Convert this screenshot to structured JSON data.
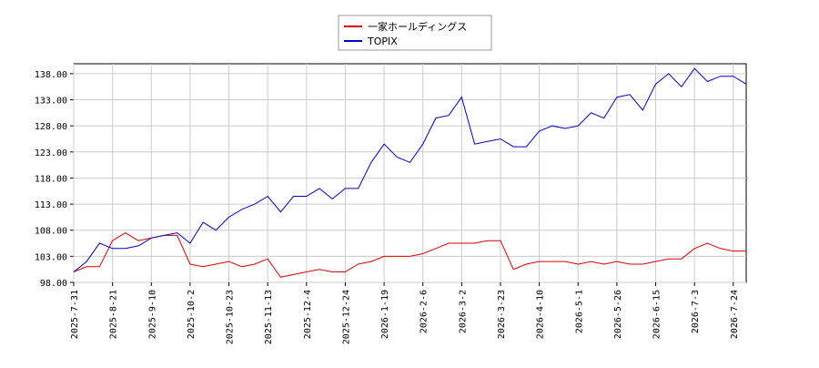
{
  "chart_data": {
    "type": "line",
    "x": [
      "2025-7-31",
      "2025-8-6",
      "2025-8-14",
      "2025-8-21",
      "2025-8-27",
      "2025-9-3",
      "2025-9-10",
      "2025-9-18",
      "2025-9-25",
      "2025-10-2",
      "2025-10-9",
      "2025-10-16",
      "2025-10-23",
      "2025-10-30",
      "2025-11-6",
      "2025-11-13",
      "2025-11-20",
      "2025-11-27",
      "2025-12-4",
      "2025-12-10",
      "2025-12-17",
      "2025-12-24",
      "2026-1-6",
      "2026-1-13",
      "2026-1-19",
      "2026-1-26",
      "2026-1-30",
      "2026-2-6",
      "2026-2-13",
      "2026-2-20",
      "2026-3-2",
      "2026-3-9",
      "2026-3-16",
      "2026-3-23",
      "2026-3-30",
      "2026-4-3",
      "2026-4-10",
      "2026-4-17",
      "2026-4-24",
      "2026-5-1",
      "2026-5-13",
      "2026-5-19",
      "2026-5-26",
      "2026-6-1",
      "2026-6-8",
      "2026-6-15",
      "2026-6-21",
      "2026-6-27",
      "2026-7-3",
      "2026-7-10",
      "2026-7-17",
      "2026-7-24",
      "2026-7-31"
    ],
    "series": [
      {
        "name": "一家ホールディングス",
        "color": "#dd0000",
        "values": [
          100,
          101,
          101,
          106,
          107.5,
          106,
          106.5,
          107,
          107,
          101.5,
          101,
          101.5,
          102,
          101,
          101.5,
          102.5,
          99,
          99.5,
          100,
          100.5,
          100,
          100,
          101.5,
          102,
          103,
          103,
          103,
          103.5,
          104.5,
          105.5,
          105.5,
          105.5,
          106,
          106,
          100.5,
          101.5,
          102,
          102,
          102,
          101.5,
          102,
          101.5,
          102,
          101.5,
          101.5,
          102,
          102.5,
          102.5,
          104.5,
          105.5,
          104.5,
          104,
          104
        ]
      },
      {
        "name": "TOPIX",
        "color": "#0000cc",
        "values": [
          100,
          102,
          105.5,
          104.5,
          104.5,
          105,
          106.5,
          107,
          107.5,
          105.5,
          109.5,
          108,
          110.5,
          112,
          113,
          114.5,
          111.5,
          114.5,
          114.5,
          116,
          114,
          116,
          116,
          121,
          124.5,
          122,
          121,
          124.5,
          129.5,
          130,
          133.5,
          124.5,
          125,
          125.5,
          124,
          124,
          127,
          128,
          127.5,
          128,
          130.5,
          129.5,
          133.5,
          134,
          131,
          136,
          138,
          135.5,
          139,
          136.5,
          137.5,
          137.5,
          136
        ]
      }
    ],
    "xticks": [
      "2025-7-31",
      "2025-8-21",
      "2025-9-10",
      "2025-10-2",
      "2025-10-23",
      "2025-11-13",
      "2025-12-4",
      "2025-12-24",
      "2026-1-19",
      "2026-2-6",
      "2026-3-2",
      "2026-3-23",
      "2026-4-10",
      "2026-5-1",
      "2026-5-26",
      "2026-6-15",
      "2026-7-3",
      "2026-7-24"
    ],
    "ylim": [
      98,
      139.9
    ],
    "yticks": [
      {
        "value": 98,
        "label": "98.00"
      },
      {
        "value": 103,
        "label": "103.00"
      },
      {
        "value": 108,
        "label": "108.00"
      },
      {
        "value": 113,
        "label": "113.00"
      },
      {
        "value": 118,
        "label": "118.00"
      },
      {
        "value": 123,
        "label": "123.00"
      },
      {
        "value": 128,
        "label": "128.00"
      },
      {
        "value": 133,
        "label": "133.00"
      },
      {
        "value": 138,
        "label": "138.00"
      }
    ],
    "grid": true,
    "legend": "top"
  }
}
